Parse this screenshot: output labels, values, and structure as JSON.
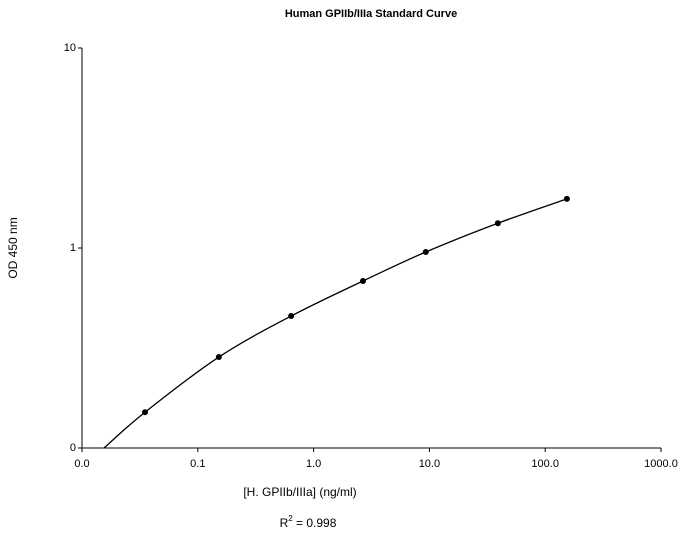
{
  "chart_data": {
    "type": "scatter",
    "title": "Human GPIIb/IIIa Standard Curve",
    "x_label": "[H. GPIIb/IIIa] (ng/ml)",
    "y_label": "OD 450 nm",
    "annotation": {
      "base": "R",
      "sup": "2",
      "rest": " = 0.998"
    },
    "xscale": "log",
    "yscale": "log",
    "xlim": [
      0.01,
      1000
    ],
    "ylim": [
      0.1,
      10
    ],
    "xticks": [
      {
        "value": 0.01,
        "label": "0.0"
      },
      0.1,
      {
        "value": 1,
        "label": "1.0"
      },
      {
        "value": 10,
        "label": "10.0"
      },
      {
        "value": 100,
        "label": "100.0"
      },
      {
        "value": 1000,
        "label": "1000.0"
      }
    ],
    "yticks": [
      {
        "value": 0.1,
        "label": "0"
      },
      1,
      10
    ],
    "grid": false,
    "color": "#000000",
    "x": [
      0.035,
      0.152,
      0.64,
      2.67,
      9.3,
      39,
      154
    ],
    "values": [
      0.151,
      0.285,
      0.457,
      0.684,
      0.955,
      1.33,
      1.76
    ],
    "fit": {
      "x": [
        0.0155,
        0.035,
        0.152,
        0.64,
        2.67,
        9.3,
        39,
        154
      ],
      "y": [
        0.1,
        0.151,
        0.285,
        0.457,
        0.684,
        0.955,
        1.33,
        1.76
      ]
    }
  }
}
